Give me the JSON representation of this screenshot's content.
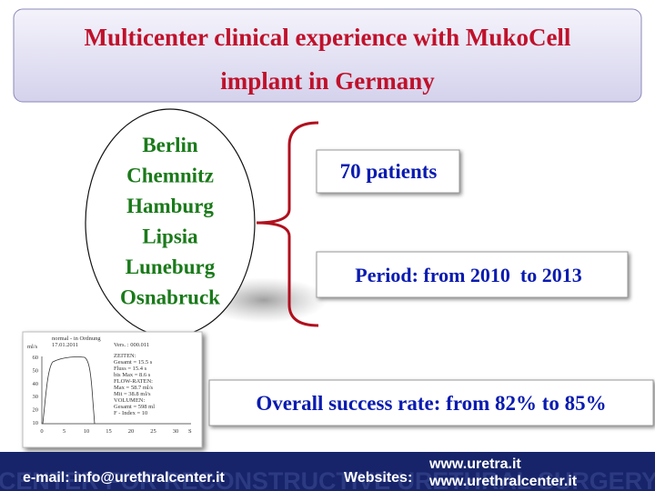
{
  "title": "Multicenter clinical experience with MukoCell implant in Germany",
  "cities": [
    "Berlin",
    "Chemnitz",
    "Hamburg",
    "Lipsia",
    "Luneburg",
    "Osnabruck"
  ],
  "facts": {
    "patients": "70 patients",
    "period": "Period: from 2010  to 2013",
    "success": "Overall success rate: from 82% to 85%"
  },
  "flow_chart": {
    "unit": "ml/s",
    "header": [
      "normal - in Ordnung",
      "17.01.2011"
    ],
    "version": "Vers. : 000.011",
    "info": [
      "ZEITEN:",
      "Gesamt = 15.5 s",
      "Fluss = 15.4 s",
      "bis Max = 8.6 s",
      "FLOW-RATEN:",
      "Max = 58.7 ml/s",
      "Mit = 38.8 ml/s",
      "VOLUMEN:",
      "Gesamt = 598 ml",
      "F - Index = 10"
    ],
    "yticks": [
      "60",
      "50",
      "40",
      "30",
      "20",
      "10"
    ],
    "xticks": [
      "0",
      "5",
      "10",
      "15",
      "20",
      "25",
      "30"
    ],
    "x_unit": "S"
  },
  "footer": {
    "email": "e-mail: info@urethralcenter.it",
    "websites_label": "Websites:",
    "websites": [
      "www.uretra.it",
      "www.urethralcenter.it"
    ],
    "watermark": "CENTER FOR RECONSTRUCTIVE URETHRAL SURGERY"
  }
}
